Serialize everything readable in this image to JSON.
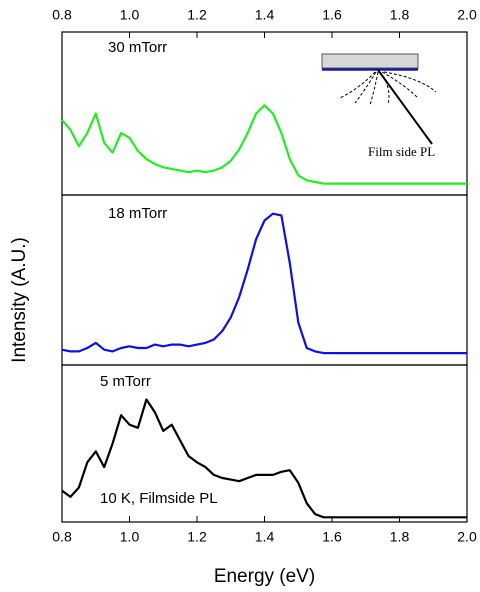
{
  "chart_data": [
    {
      "type": "line",
      "color": "#22ee22",
      "annotations": [
        "30 mTorr",
        "Film side PL"
      ],
      "xlim": [
        0.8,
        2.0
      ],
      "ylim": [
        0,
        1
      ],
      "xticks": [
        0.8,
        {
          "value": 1,
          "label": "1.0"
        },
        1.2,
        1.4,
        1.6,
        1.8,
        {
          "value": 2,
          "label": "2.0"
        }
      ],
      "x": [
        0.8,
        0.825,
        0.85,
        0.875,
        0.9,
        0.925,
        0.95,
        0.975,
        1,
        1.025,
        1.05,
        1.075,
        1.1,
        1.125,
        1.15,
        1.175,
        1.2,
        1.225,
        1.25,
        1.275,
        1.3,
        1.325,
        1.35,
        1.375,
        1.4,
        1.425,
        1.45,
        1.475,
        1.5,
        1.525,
        1.55,
        1.575,
        1.6,
        1.625,
        1.65,
        1.675,
        1.7,
        1.725,
        1.75,
        1.775,
        1.8,
        1.825,
        1.85,
        1.875,
        1.9,
        1.925,
        1.95,
        1.975,
        2
      ],
      "values": [
        0.46,
        0.4,
        0.3,
        0.38,
        0.5,
        0.32,
        0.26,
        0.38,
        0.35,
        0.27,
        0.22,
        0.19,
        0.17,
        0.16,
        0.15,
        0.14,
        0.15,
        0.14,
        0.15,
        0.17,
        0.21,
        0.28,
        0.38,
        0.5,
        0.55,
        0.5,
        0.38,
        0.22,
        0.12,
        0.09,
        0.08,
        0.07,
        0.07,
        0.07,
        0.07,
        0.07,
        0.07,
        0.07,
        0.07,
        0.07,
        0.07,
        0.07,
        0.07,
        0.07,
        0.07,
        0.07,
        0.07,
        0.07,
        0.07
      ]
    },
    {
      "type": "line",
      "color": "#1010dd",
      "annotations": [
        "18 mTorr"
      ],
      "ylabel": "Intensity (A.U.)",
      "xlim": [
        0.8,
        2.0
      ],
      "ylim": [
        0,
        1
      ],
      "x": [
        0.8,
        0.825,
        0.85,
        0.875,
        0.9,
        0.925,
        0.95,
        0.975,
        1,
        1.025,
        1.05,
        1.075,
        1.1,
        1.125,
        1.15,
        1.175,
        1.2,
        1.225,
        1.25,
        1.275,
        1.3,
        1.325,
        1.35,
        1.375,
        1.4,
        1.425,
        1.45,
        1.475,
        1.5,
        1.525,
        1.55,
        1.575,
        1.6,
        1.625,
        1.65,
        1.675,
        1.7,
        1.725,
        1.75,
        1.775,
        1.8,
        1.825,
        1.85,
        1.875,
        1.9,
        1.925,
        1.95,
        1.975,
        2
      ],
      "values": [
        0.09,
        0.08,
        0.08,
        0.1,
        0.13,
        0.09,
        0.08,
        0.1,
        0.11,
        0.1,
        0.1,
        0.12,
        0.11,
        0.12,
        0.12,
        0.11,
        0.12,
        0.13,
        0.15,
        0.2,
        0.28,
        0.4,
        0.56,
        0.74,
        0.85,
        0.89,
        0.88,
        0.6,
        0.25,
        0.1,
        0.08,
        0.07,
        0.07,
        0.07,
        0.07,
        0.07,
        0.07,
        0.07,
        0.07,
        0.07,
        0.07,
        0.07,
        0.07,
        0.07,
        0.07,
        0.07,
        0.07,
        0.07,
        0.07
      ]
    },
    {
      "type": "line",
      "color": "#000000",
      "annotations": [
        "5 mTorr",
        "10 K, Filmside PL"
      ],
      "xlabel": "Energy (eV)",
      "xlim": [
        0.8,
        2.0
      ],
      "ylim": [
        0,
        1
      ],
      "xticks": [
        0.8,
        {
          "value": 1,
          "label": "1.0"
        },
        1.2,
        1.4,
        1.6,
        1.8,
        {
          "value": 2,
          "label": "2.0"
        }
      ],
      "x": [
        0.8,
        0.825,
        0.85,
        0.875,
        0.9,
        0.925,
        0.95,
        0.975,
        1,
        1.025,
        1.05,
        1.075,
        1.1,
        1.125,
        1.15,
        1.175,
        1.2,
        1.225,
        1.25,
        1.275,
        1.3,
        1.325,
        1.35,
        1.375,
        1.4,
        1.425,
        1.45,
        1.475,
        1.5,
        1.525,
        1.55,
        1.575,
        1.6,
        1.625,
        1.65,
        1.675,
        1.7,
        1.725,
        1.75,
        1.775,
        1.8,
        1.825,
        1.85,
        1.875,
        1.9,
        1.925,
        1.95,
        1.975,
        2
      ],
      "values": [
        0.2,
        0.16,
        0.22,
        0.38,
        0.45,
        0.35,
        0.5,
        0.68,
        0.62,
        0.6,
        0.78,
        0.7,
        0.58,
        0.62,
        0.52,
        0.42,
        0.38,
        0.35,
        0.3,
        0.28,
        0.27,
        0.26,
        0.28,
        0.3,
        0.3,
        0.3,
        0.32,
        0.33,
        0.25,
        0.12,
        0.05,
        0.03,
        0.03,
        0.03,
        0.03,
        0.03,
        0.03,
        0.03,
        0.03,
        0.03,
        0.03,
        0.03,
        0.03,
        0.03,
        0.03,
        0.03,
        0.03,
        0.03,
        0.03
      ]
    }
  ]
}
